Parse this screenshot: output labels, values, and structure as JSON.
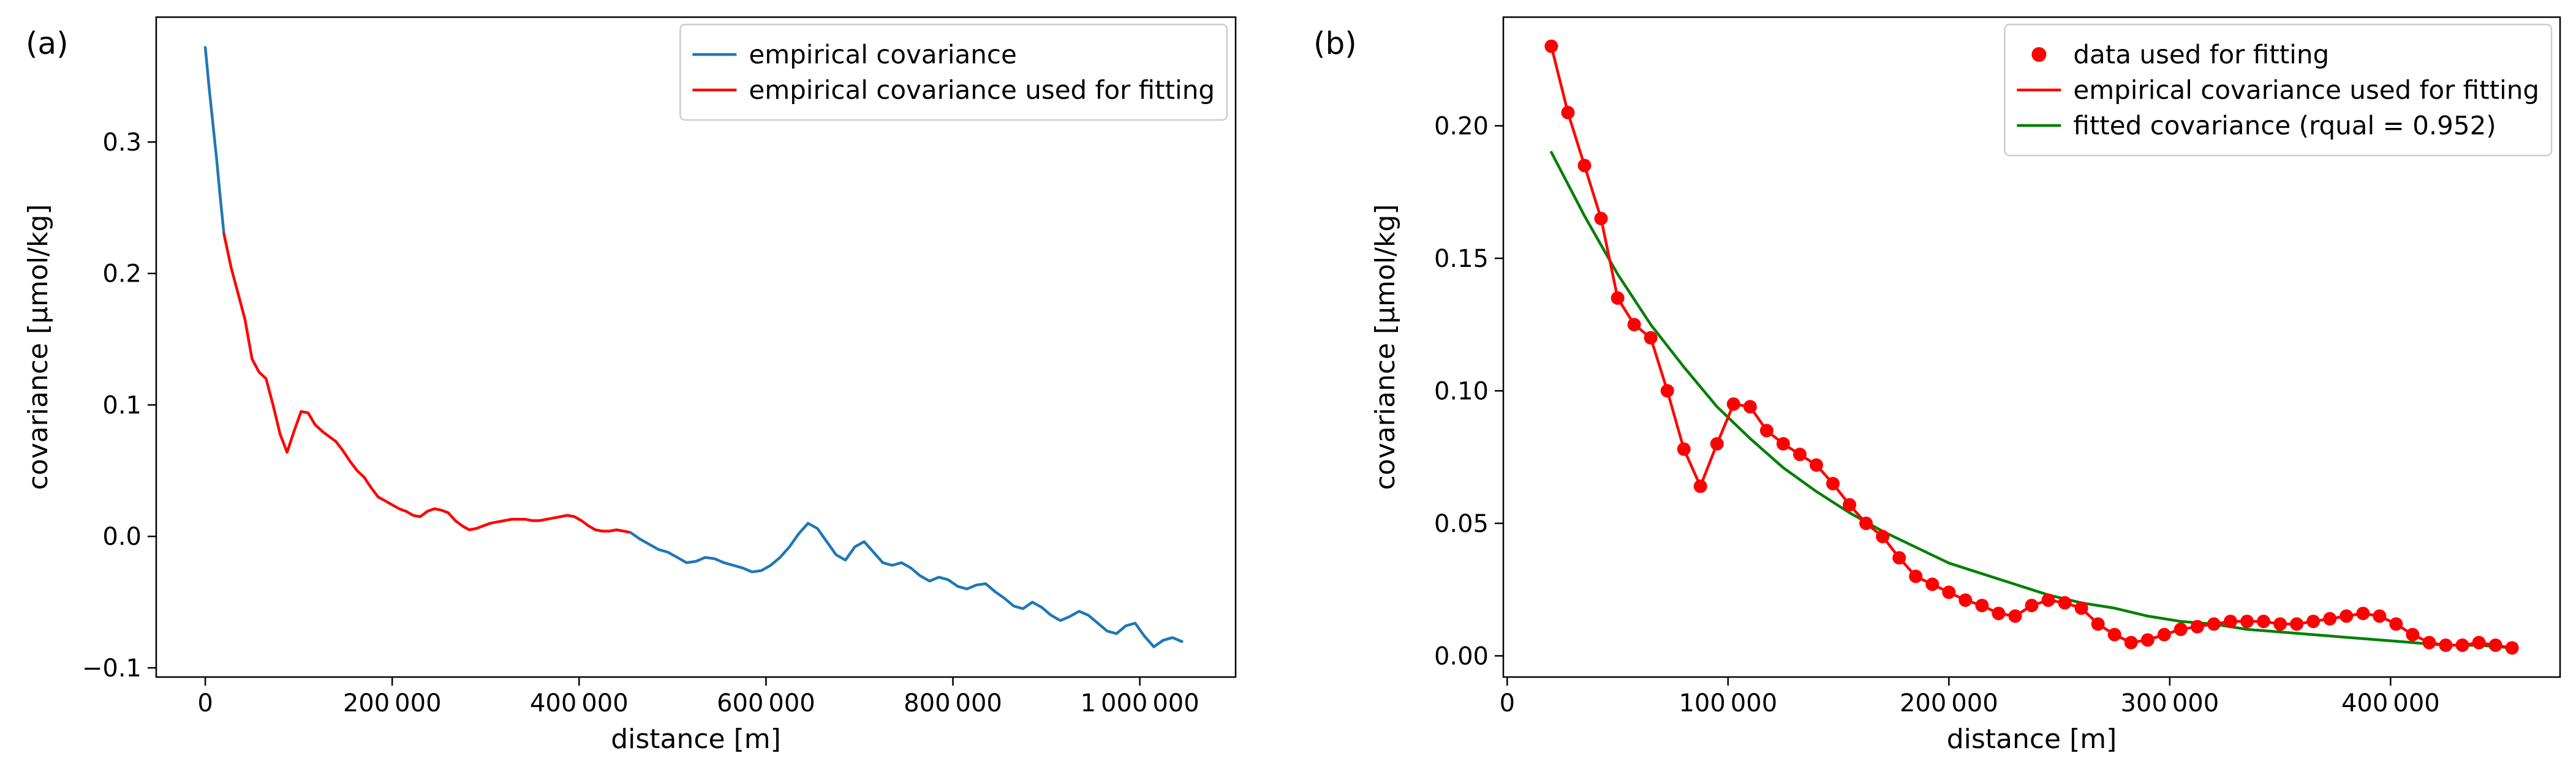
{
  "figure": {
    "background": "#ffffff",
    "text_color": "#000000"
  },
  "colors": {
    "empirical_blue": "#1f77b4",
    "fitting_red": "#ff0000",
    "fitted_green": "#008000",
    "legend_border": "#cccccc"
  },
  "chart_data": [
    {
      "type": "line",
      "panel_label": "(a)",
      "title": "",
      "xlabel": "distance [m]",
      "ylabel": "covariance [µmol/kg]",
      "xlim": [
        -52500,
        1102500
      ],
      "ylim": [
        -0.107,
        0.395
      ],
      "grid": false,
      "legend_position": "upper right",
      "xticks": {
        "values": [
          0,
          200000,
          400000,
          600000,
          800000,
          1000000
        ],
        "labels": [
          "0",
          "200 000",
          "400 000",
          "600 000",
          "800 000",
          "1 000 000"
        ]
      },
      "yticks": {
        "values": [
          -0.1,
          0.0,
          0.1,
          0.2,
          0.3
        ],
        "labels": [
          "−0.1",
          "0.0",
          "0.1",
          "0.2",
          "0.3"
        ]
      },
      "legend": [
        {
          "label": "empirical covariance",
          "color": "#1f77b4",
          "marker": "line"
        },
        {
          "label": "empirical covariance used for fitting",
          "color": "#ff0000",
          "marker": "line"
        }
      ],
      "series": [
        {
          "id": "empirical-covariance-head",
          "name": "empirical covariance",
          "color": "#1f77b4",
          "marker": "none",
          "x": [
            0,
            4000,
            8000,
            12000,
            16000,
            20000
          ],
          "y": [
            0.372,
            0.342,
            0.315,
            0.288,
            0.258,
            0.23
          ]
        },
        {
          "id": "empirical-covariance-used-for-fitting",
          "name": "empirical covariance used for fitting",
          "color": "#ff0000",
          "marker": "none",
          "x": [
            20000,
            27500,
            35000,
            42500,
            50000,
            57500,
            65000,
            72500,
            80000,
            87500,
            95000,
            102500,
            110000,
            117500,
            125000,
            132500,
            140000,
            147500,
            155000,
            162500,
            170000,
            177500,
            185000,
            192500,
            200000,
            207500,
            215000,
            222500,
            230000,
            237500,
            245000,
            252500,
            260000,
            267500,
            275000,
            282500,
            290000,
            297500,
            305000,
            312500,
            320000,
            327500,
            335000,
            342500,
            350000,
            357500,
            365000,
            372500,
            380000,
            387500,
            395000,
            402500,
            410000,
            417500,
            425000,
            432500,
            440000,
            447500,
            455000
          ],
          "y": [
            0.23,
            0.205,
            0.185,
            0.165,
            0.135,
            0.125,
            0.12,
            0.1,
            0.078,
            0.064,
            0.08,
            0.095,
            0.094,
            0.085,
            0.08,
            0.076,
            0.072,
            0.065,
            0.057,
            0.05,
            0.045,
            0.037,
            0.03,
            0.027,
            0.024,
            0.021,
            0.019,
            0.016,
            0.015,
            0.019,
            0.021,
            0.02,
            0.018,
            0.012,
            0.008,
            0.005,
            0.006,
            0.008,
            0.01,
            0.011,
            0.012,
            0.013,
            0.013,
            0.013,
            0.012,
            0.012,
            0.013,
            0.014,
            0.015,
            0.016,
            0.015,
            0.012,
            0.008,
            0.005,
            0.004,
            0.004,
            0.005,
            0.004,
            0.003
          ]
        },
        {
          "id": "empirical-covariance-tail",
          "name": "empirical covariance",
          "color": "#1f77b4",
          "marker": "none",
          "x": [
            455000,
            465000,
            475000,
            485000,
            495000,
            505000,
            515000,
            525000,
            535000,
            545000,
            555000,
            565000,
            575000,
            585000,
            595000,
            605000,
            615000,
            625000,
            635000,
            645000,
            655000,
            665000,
            675000,
            685000,
            695000,
            705000,
            715000,
            725000,
            735000,
            745000,
            755000,
            765000,
            775000,
            785000,
            795000,
            805000,
            815000,
            825000,
            835000,
            845000,
            855000,
            865000,
            875000,
            885000,
            895000,
            905000,
            915000,
            925000,
            935000,
            945000,
            955000,
            965000,
            975000,
            985000,
            995000,
            1005000,
            1015000,
            1025000,
            1035000,
            1045000
          ],
          "y": [
            0.003,
            -0.002,
            -0.006,
            -0.01,
            -0.012,
            -0.016,
            -0.02,
            -0.019,
            -0.016,
            -0.017,
            -0.02,
            -0.022,
            -0.024,
            -0.027,
            -0.026,
            -0.022,
            -0.016,
            -0.008,
            0.002,
            0.01,
            0.006,
            -0.004,
            -0.014,
            -0.018,
            -0.008,
            -0.004,
            -0.012,
            -0.02,
            -0.022,
            -0.02,
            -0.024,
            -0.03,
            -0.034,
            -0.031,
            -0.033,
            -0.038,
            -0.04,
            -0.037,
            -0.036,
            -0.042,
            -0.047,
            -0.053,
            -0.055,
            -0.05,
            -0.054,
            -0.06,
            -0.064,
            -0.061,
            -0.057,
            -0.06,
            -0.066,
            -0.072,
            -0.074,
            -0.068,
            -0.066,
            -0.076,
            -0.084,
            -0.079,
            -0.077,
            -0.08
          ]
        }
      ]
    },
    {
      "type": "line",
      "panel_label": "(b)",
      "title": "",
      "xlabel": "distance [m]",
      "ylabel": "covariance [µmol/kg]",
      "xlim": [
        -1750,
        476750
      ],
      "ylim": [
        -0.008,
        0.241
      ],
      "grid": false,
      "legend_position": "upper right",
      "xticks": {
        "values": [
          0,
          100000,
          200000,
          300000,
          400000
        ],
        "labels": [
          "0",
          "100 000",
          "200 000",
          "300 000",
          "400 000"
        ]
      },
      "yticks": {
        "values": [
          0.0,
          0.05,
          0.1,
          0.15,
          0.2
        ],
        "labels": [
          "0.00",
          "0.05",
          "0.10",
          "0.15",
          "0.20"
        ]
      },
      "legend": [
        {
          "label": "data used for fitting",
          "color": "#ff0000",
          "marker": "dot"
        },
        {
          "label": "empirical covariance used for fitting",
          "color": "#ff0000",
          "marker": "line"
        },
        {
          "label": "fitted covariance (rqual = 0.952)",
          "color": "#008000",
          "marker": "line"
        }
      ],
      "series": [
        {
          "id": "fitted-covariance",
          "name": "fitted covariance (rqual = 0.952)",
          "color": "#008000",
          "marker": "none",
          "x": [
            20000,
            35000,
            50000,
            65000,
            80000,
            95000,
            110000,
            125000,
            140000,
            155000,
            170000,
            185000,
            200000,
            215000,
            230000,
            245000,
            260000,
            275000,
            290000,
            305000,
            320000,
            335000,
            350000,
            365000,
            380000,
            395000,
            410000,
            425000,
            440000,
            455000
          ],
          "y": [
            0.19,
            0.166,
            0.144,
            0.125,
            0.109,
            0.094,
            0.082,
            0.071,
            0.062,
            0.054,
            0.047,
            0.041,
            0.035,
            0.031,
            0.027,
            0.023,
            0.02,
            0.018,
            0.015,
            0.013,
            0.012,
            0.01,
            0.009,
            0.008,
            0.007,
            0.006,
            0.005,
            0.004,
            0.004,
            0.003
          ]
        },
        {
          "id": "data-used-for-fitting",
          "name": "data used for fitting / empirical covariance used for fitting",
          "color": "#ff0000",
          "marker": "o",
          "x": [
            20000,
            27500,
            35000,
            42500,
            50000,
            57500,
            65000,
            72500,
            80000,
            87500,
            95000,
            102500,
            110000,
            117500,
            125000,
            132500,
            140000,
            147500,
            155000,
            162500,
            170000,
            177500,
            185000,
            192500,
            200000,
            207500,
            215000,
            222500,
            230000,
            237500,
            245000,
            252500,
            260000,
            267500,
            275000,
            282500,
            290000,
            297500,
            305000,
            312500,
            320000,
            327500,
            335000,
            342500,
            350000,
            357500,
            365000,
            372500,
            380000,
            387500,
            395000,
            402500,
            410000,
            417500,
            425000,
            432500,
            440000,
            447500,
            455000
          ],
          "y": [
            0.23,
            0.205,
            0.185,
            0.165,
            0.135,
            0.125,
            0.12,
            0.1,
            0.078,
            0.064,
            0.08,
            0.095,
            0.094,
            0.085,
            0.08,
            0.076,
            0.072,
            0.065,
            0.057,
            0.05,
            0.045,
            0.037,
            0.03,
            0.027,
            0.024,
            0.021,
            0.019,
            0.016,
            0.015,
            0.019,
            0.021,
            0.02,
            0.018,
            0.012,
            0.008,
            0.005,
            0.006,
            0.008,
            0.01,
            0.011,
            0.012,
            0.013,
            0.013,
            0.013,
            0.012,
            0.012,
            0.013,
            0.014,
            0.015,
            0.016,
            0.015,
            0.012,
            0.008,
            0.005,
            0.004,
            0.004,
            0.005,
            0.004,
            0.003
          ]
        }
      ]
    }
  ]
}
